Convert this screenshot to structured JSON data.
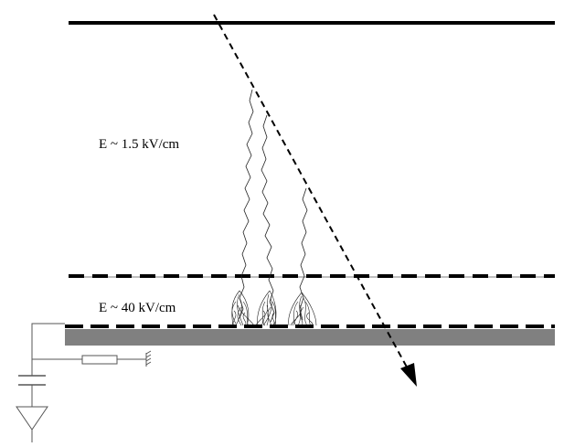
{
  "labels": {
    "drift_field": "E ~ 1.5 kV/cm",
    "amplification_field": "E ~ 40 kV/cm"
  },
  "colors": {
    "line": "#000000",
    "pad_plane": "#808080",
    "background": "#ffffff"
  }
}
